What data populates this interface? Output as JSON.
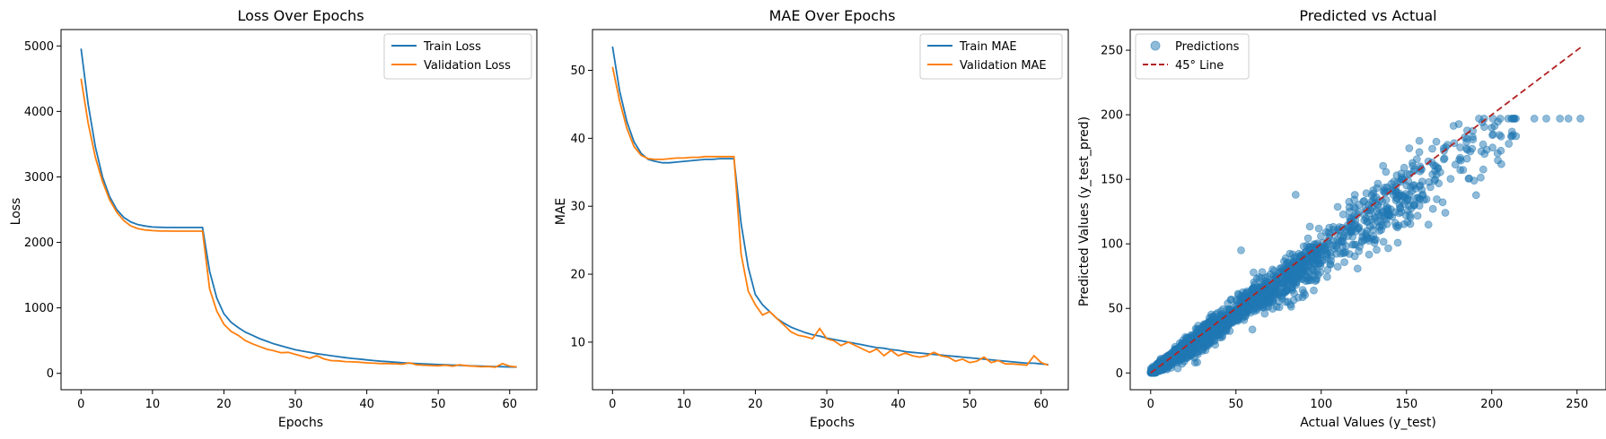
{
  "chart_data": [
    {
      "type": "line",
      "title": "Loss Over Epochs",
      "xlabel": "Epochs",
      "ylabel": "Loss",
      "xlim": [
        -2.8,
        63.8
      ],
      "ylim": [
        -250,
        5250
      ],
      "xticks": [
        0,
        10,
        20,
        30,
        40,
        50,
        60
      ],
      "yticks": [
        0,
        1000,
        2000,
        3000,
        4000,
        5000
      ],
      "grid": false,
      "legend": "top-right",
      "series": [
        {
          "name": "Train Loss",
          "color": "#1f77b4",
          "values": [
            4960,
            4110,
            3460,
            3000,
            2700,
            2500,
            2380,
            2310,
            2270,
            2250,
            2235,
            2230,
            2228,
            2228,
            2228,
            2228,
            2228,
            2228,
            1560,
            1150,
            910,
            780,
            700,
            630,
            580,
            530,
            490,
            450,
            420,
            390,
            360,
            340,
            320,
            300,
            285,
            270,
            255,
            240,
            228,
            218,
            205,
            195,
            185,
            178,
            170,
            162,
            155,
            150,
            145,
            140,
            135,
            130,
            126,
            122,
            118,
            114,
            110,
            107,
            104,
            101,
            98,
            96
          ]
        },
        {
          "name": "Validation Loss",
          "color": "#ff7f0e",
          "values": [
            4500,
            3820,
            3300,
            2930,
            2650,
            2460,
            2330,
            2250,
            2210,
            2190,
            2180,
            2175,
            2173,
            2172,
            2172,
            2172,
            2172,
            2172,
            1290,
            950,
            750,
            640,
            580,
            500,
            450,
            410,
            370,
            345,
            315,
            320,
            290,
            260,
            230,
            270,
            220,
            195,
            190,
            180,
            175,
            170,
            160,
            155,
            150,
            150,
            145,
            140,
            160,
            130,
            125,
            120,
            115,
            125,
            110,
            130,
            115,
            110,
            100,
            105,
            95,
            150,
            110,
            98
          ]
        }
      ]
    },
    {
      "type": "line",
      "title": "MAE Over Epochs",
      "xlabel": "Epochs",
      "ylabel": "MAE",
      "xlim": [
        -2.8,
        63.8
      ],
      "ylim": [
        3,
        56
      ],
      "xticks": [
        0,
        10,
        20,
        30,
        40,
        50,
        60
      ],
      "yticks": [
        10,
        20,
        30,
        40,
        50
      ],
      "grid": false,
      "legend": "top-right",
      "series": [
        {
          "name": "Train MAE",
          "color": "#1f77b4",
          "values": [
            53.5,
            47.0,
            42.5,
            39.5,
            37.8,
            36.9,
            36.6,
            36.4,
            36.4,
            36.5,
            36.6,
            36.7,
            36.8,
            36.9,
            36.9,
            37.0,
            37.0,
            37.0,
            27.5,
            21.0,
            17.0,
            15.5,
            14.5,
            13.5,
            12.8,
            12.2,
            11.8,
            11.4,
            11.1,
            10.9,
            10.6,
            10.4,
            10.2,
            10.0,
            9.8,
            9.6,
            9.4,
            9.2,
            9.1,
            8.9,
            8.8,
            8.6,
            8.5,
            8.4,
            8.3,
            8.2,
            8.1,
            8.0,
            7.9,
            7.8,
            7.7,
            7.6,
            7.5,
            7.4,
            7.3,
            7.2,
            7.1,
            7.0,
            6.9,
            6.9,
            6.8,
            6.7
          ]
        },
        {
          "name": "Validation MAE",
          "color": "#ff7f0e",
          "values": [
            50.5,
            45.5,
            41.5,
            38.8,
            37.5,
            37.0,
            36.9,
            36.9,
            37.0,
            37.1,
            37.1,
            37.2,
            37.2,
            37.3,
            37.3,
            37.3,
            37.3,
            37.3,
            23.0,
            17.5,
            15.5,
            14.0,
            14.5,
            13.5,
            12.5,
            11.5,
            11.0,
            10.8,
            10.5,
            12.0,
            10.5,
            10.2,
            9.5,
            10.0,
            9.5,
            9.0,
            8.5,
            9.0,
            8.0,
            8.8,
            8.0,
            8.4,
            8.0,
            7.8,
            8.0,
            8.5,
            8.0,
            7.8,
            7.2,
            7.5,
            7.0,
            7.2,
            7.8,
            7.0,
            7.3,
            6.8,
            6.8,
            6.7,
            6.6,
            8.0,
            7.0,
            6.6
          ]
        }
      ]
    },
    {
      "type": "scatter",
      "title": "Predicted vs Actual",
      "xlabel": "Actual Values (y_test)",
      "ylabel": "Predicted Values (y_test_pred)",
      "xlim": [
        -12,
        267
      ],
      "ylim": [
        -13,
        266
      ],
      "xticks": [
        0,
        50,
        100,
        150,
        200,
        250
      ],
      "yticks": [
        0,
        50,
        100,
        150,
        200,
        250
      ],
      "grid": false,
      "legend": "top-left",
      "series": [
        {
          "name": "Predictions",
          "color": "#1f77b4",
          "point_count": 1800,
          "note_trend": "points cluster along y = 0.9x with spread; predictions cap near 197",
          "points_sample": [
            [
              225,
              197
            ],
            [
              232,
              197
            ],
            [
              240,
              197
            ],
            [
              245,
              197
            ],
            [
              252,
              197
            ],
            [
              205,
              197
            ],
            [
              212,
              197
            ],
            [
              200,
              190
            ],
            [
              26,
              8
            ],
            [
              53,
              95
            ],
            [
              85,
              138
            ],
            [
              158,
              160
            ],
            [
              165,
              163
            ],
            [
              172,
              172
            ],
            [
              178,
              178
            ]
          ]
        },
        {
          "name": "45° Line",
          "color": "#b22222",
          "style": "dashed",
          "x": [
            0,
            253
          ],
          "y": [
            0,
            253
          ]
        }
      ]
    }
  ]
}
